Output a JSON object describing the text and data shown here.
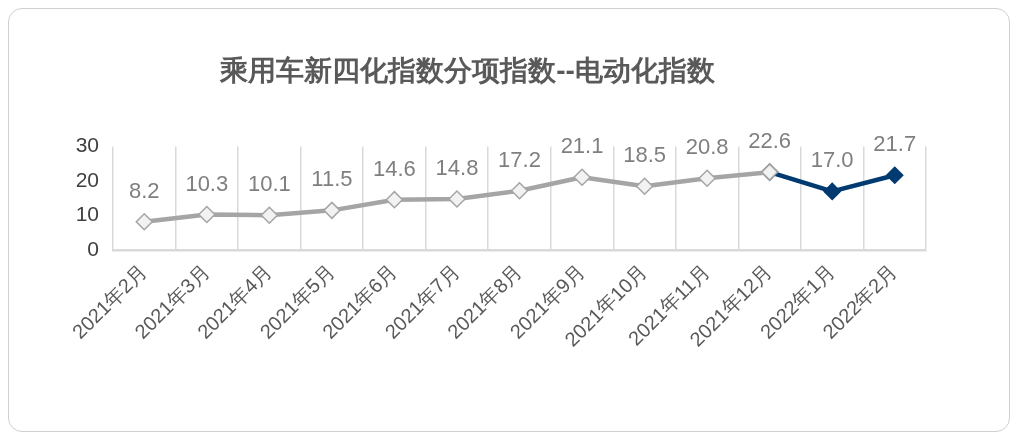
{
  "chart_data": {
    "type": "line",
    "title": "乘用车新四化指数分项指数--电动化指数",
    "categories": [
      "2021年2月",
      "2021年3月",
      "2021年4月",
      "2021年5月",
      "2021年6月",
      "2021年7月",
      "2021年8月",
      "2021年9月",
      "2021年10月",
      "2021年11月",
      "2021年12月",
      "2022年1月",
      "2022年2月"
    ],
    "series": [
      {
        "color": "#a5a5a5",
        "values": [
          8.2,
          10.3,
          10.1,
          11.5,
          14.6,
          14.8,
          17.2,
          21.1,
          18.5,
          20.8,
          22.6,
          null,
          null
        ],
        "value_labels": [
          "8.2",
          "10.3",
          "10.1",
          "11.5",
          "14.6",
          "14.8",
          "17.2",
          "21.1",
          "18.5",
          "20.8",
          "22.6",
          null,
          null
        ]
      },
      {
        "color": "#003a70",
        "values": [
          null,
          null,
          null,
          null,
          null,
          null,
          null,
          null,
          null,
          null,
          22.6,
          17.0,
          21.7
        ],
        "value_labels": [
          null,
          null,
          null,
          null,
          null,
          null,
          null,
          null,
          null,
          null,
          null,
          "17.0",
          "21.7"
        ]
      }
    ],
    "ylim": [
      0,
      30
    ],
    "yticks": [
      0,
      10,
      20,
      30
    ],
    "grid": "x",
    "marker": "diamond",
    "line_style": "solid"
  }
}
